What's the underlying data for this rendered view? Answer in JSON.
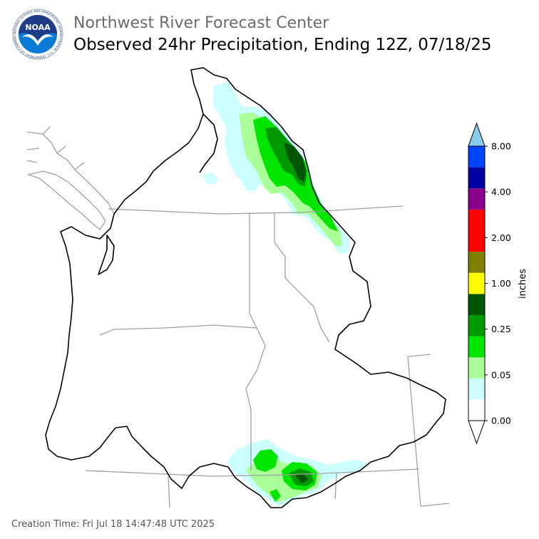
{
  "header": {
    "org_title": "Northwest River Forecast Center",
    "product_title": "Observed 24hr Precipitation, Ending 12Z, 07/18/25"
  },
  "logo": {
    "name": "NOAA",
    "ring_text": "NATIONAL OCEANIC AND ATMOSPHERIC ADMINISTRATION · U.S. DEPARTMENT OF COMMERCE",
    "colors": {
      "navy": "#1f3c88",
      "blue": "#0a7ad6",
      "white": "#ffffff"
    }
  },
  "legend": {
    "unit_label": "inches",
    "tick_labels": [
      "8.00",
      "4.00",
      "2.00",
      "1.00",
      "0.25",
      "0.05",
      "0.00"
    ],
    "colors_bottom_to_top": [
      "#ffffff",
      "#ccffff",
      "#aaff99",
      "#00e600",
      "#009900",
      "#005500",
      "#ffff00",
      "#808000",
      "#ff0000",
      "#ff0000",
      "#8b008b",
      "#0000a0",
      "#0044ff",
      "#88ccee"
    ]
  },
  "map": {
    "precip_colors": {
      "trace": "#ccffff",
      "light": "#aaff99",
      "moderate": "#00e600",
      "heavy": "#009900",
      "very_heavy": "#005500"
    },
    "line_colors": {
      "basin": "#000000",
      "borders": "#a0a0a0"
    }
  },
  "footer": {
    "creation_time": "Creation Time: Fri Jul 18 14:47:48 UTC 2025"
  }
}
